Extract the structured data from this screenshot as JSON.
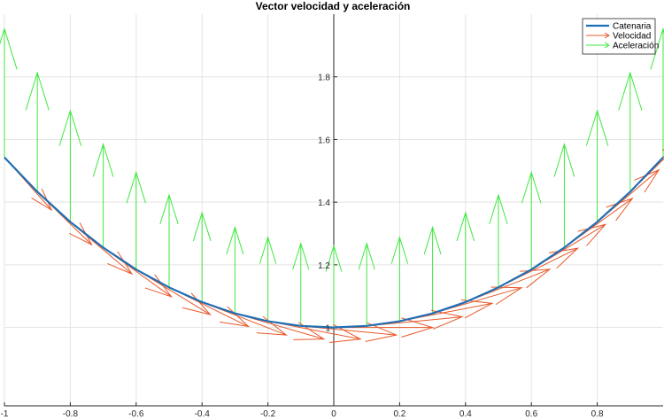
{
  "chart_data": {
    "type": "line",
    "title": "Vector velocidad y aceleración",
    "xlabel": "",
    "ylabel": "",
    "xlim": [
      -1,
      1
    ],
    "ylim": [
      0.75,
      2.0
    ],
    "xticks": [
      -1,
      -0.8,
      -0.6,
      -0.4,
      -0.2,
      0,
      0.2,
      0.4,
      0.6,
      0.8
    ],
    "xtick_labels": [
      "-1",
      "-0.8",
      "-0.6",
      "-0.4",
      "-0.2",
      "0",
      "0.2",
      "0.4",
      "0.6",
      "0.8"
    ],
    "yticks": [
      1,
      1.2,
      1.4,
      1.6,
      1.8
    ],
    "ytick_labels": [
      "1",
      "1.2",
      "1.4",
      "1.6",
      "1.8"
    ],
    "grid": true,
    "axes_through_origin": true,
    "legend_position": "top-right",
    "legend": [
      "Catenaria",
      "Velocidad",
      "Aceleración"
    ],
    "colors": {
      "curve": "#1f6fb4",
      "velocity": "#e8582a",
      "acceleration": "#3ee83e",
      "grid": "#e3e3e3",
      "axis": "#262626"
    },
    "series": [
      {
        "name": "Catenaria",
        "type": "line",
        "x": [
          -1,
          -0.9,
          -0.8,
          -0.7,
          -0.6,
          -0.5,
          -0.4,
          -0.3,
          -0.2,
          -0.1,
          0,
          0.1,
          0.2,
          0.3,
          0.4,
          0.5,
          0.6,
          0.7,
          0.8,
          0.9,
          1
        ],
        "y": [
          1.543,
          1.433,
          1.337,
          1.255,
          1.185,
          1.128,
          1.081,
          1.045,
          1.02,
          1.005,
          1.0,
          1.005,
          1.02,
          1.045,
          1.081,
          1.128,
          1.185,
          1.255,
          1.337,
          1.433,
          1.543
        ]
      },
      {
        "name": "Velocidad",
        "type": "quiver",
        "x": [
          -1,
          -0.9,
          -0.8,
          -0.7,
          -0.6,
          -0.5,
          -0.4,
          -0.3,
          -0.2,
          -0.1,
          0,
          0.1,
          0.2,
          0.3,
          0.4,
          0.5,
          0.6,
          0.7,
          0.8,
          0.9,
          1
        ],
        "y": [
          1.543,
          1.433,
          1.337,
          1.255,
          1.185,
          1.128,
          1.081,
          1.045,
          1.02,
          1.005,
          1.0,
          1.005,
          1.02,
          1.045,
          1.081,
          1.128,
          1.185,
          1.255,
          1.337,
          1.433,
          1.543
        ],
        "u": [
          0.143,
          0.165,
          0.187,
          0.207,
          0.225,
          0.241,
          0.256,
          0.27,
          0.281,
          0.29,
          0.3,
          0.29,
          0.281,
          0.27,
          0.256,
          0.241,
          0.225,
          0.207,
          0.187,
          0.165,
          0.143
        ],
        "v": [
          -0.168,
          -0.169,
          -0.166,
          -0.157,
          -0.144,
          -0.125,
          -0.105,
          -0.082,
          -0.057,
          -0.029,
          0.0,
          0.029,
          0.057,
          0.082,
          0.105,
          0.125,
          0.144,
          0.157,
          0.166,
          0.169,
          0.168
        ]
      },
      {
        "name": "Aceleración",
        "type": "quiver",
        "x": [
          -1,
          -0.9,
          -0.8,
          -0.7,
          -0.6,
          -0.5,
          -0.4,
          -0.3,
          -0.2,
          -0.1,
          0,
          0.1,
          0.2,
          0.3,
          0.4,
          0.5,
          0.6,
          0.7,
          0.8,
          0.9,
          1
        ],
        "y": [
          1.543,
          1.433,
          1.337,
          1.255,
          1.185,
          1.128,
          1.081,
          1.045,
          1.02,
          1.005,
          1.0,
          1.005,
          1.02,
          1.045,
          1.081,
          1.128,
          1.185,
          1.255,
          1.337,
          1.433,
          1.543
        ],
        "u": [
          0,
          0,
          0,
          0,
          0,
          0,
          0,
          0,
          0,
          0,
          0,
          0,
          0,
          0,
          0,
          0,
          0,
          0,
          0,
          0,
          0
        ],
        "v": [
          0.41,
          0.38,
          0.355,
          0.33,
          0.31,
          0.295,
          0.285,
          0.275,
          0.268,
          0.263,
          0.26,
          0.263,
          0.268,
          0.275,
          0.285,
          0.295,
          0.31,
          0.33,
          0.355,
          0.38,
          0.41
        ]
      }
    ]
  }
}
